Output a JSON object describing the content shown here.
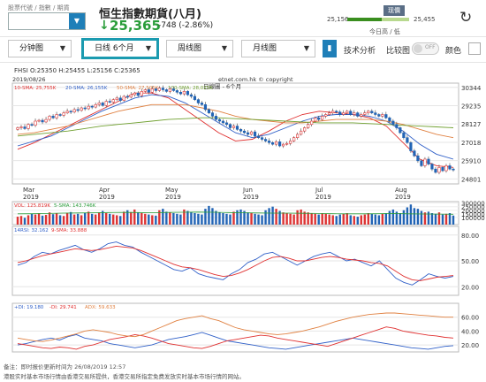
{
  "header": {
    "code_label": "股票代號 / 指數 / 期貨",
    "code_value": "",
    "stock_name": "恒生指數期貨(八月)",
    "price": "25,365",
    "change": "-748 (-2.86%)",
    "range_low": "25,156",
    "range_high": "25,455",
    "range_tag": "现價",
    "range_caption": "今日高 / 低",
    "range_fraction": 0.55
  },
  "toolbar": {
    "interval": "分钟图",
    "period": "日线 6个月",
    "weekly": "周线图",
    "monthly": "月线图",
    "tech": "技术分析",
    "compare": "比较图",
    "toggle_text": "OFF",
    "color": "颜色"
  },
  "quote": {
    "text": "FHSI    O:25350  H:25455  L:25156  C:25365"
  },
  "chart_data": [
    {
      "type": "candlestick",
      "date": "2019/08/26",
      "title": "日線圖 - 6个月",
      "source": "etnet.com.hk © copyright",
      "legend": [
        "10-SMA: 25,755K",
        "20-SMA: 26,155K",
        "50-SMA: 27,505K",
        "100-SMA: 28,025K"
      ],
      "y_ticks": [
        "30344",
        "29235",
        "28127",
        "27018",
        "25910",
        "24801"
      ],
      "ylim": [
        24500,
        30600
      ],
      "x_ticks": [
        [
          "Mar",
          "2019"
        ],
        [
          "Apr",
          "2019"
        ],
        [
          "May",
          "2019"
        ],
        [
          "Jun",
          "2019"
        ],
        [
          "Jul",
          "2019"
        ],
        [
          "Aug",
          "2019"
        ]
      ],
      "closes": [
        27900,
        27950,
        27850,
        28100,
        28050,
        28300,
        28350,
        28250,
        28400,
        28600,
        28500,
        28700,
        28650,
        28800,
        28900,
        28850,
        29000,
        28950,
        29100,
        29050,
        29200,
        29150,
        29300,
        29400,
        29250,
        29500,
        29450,
        29600,
        29700,
        29550,
        29800,
        29750,
        29900,
        30000,
        29850,
        30100,
        30200,
        30050,
        30250,
        30150,
        30300,
        30200,
        30100,
        30250,
        30150,
        30050,
        29950,
        30100,
        29900,
        29800,
        29600,
        29400,
        29300,
        29000,
        28800,
        28600,
        28400,
        28300,
        28200,
        28100,
        27900,
        28000,
        27800,
        27700,
        27600,
        27500,
        27650,
        27400,
        27300,
        27200,
        27100,
        27000,
        26900,
        27050,
        26800,
        26900,
        26950,
        27100,
        27300,
        27500,
        27700,
        27900,
        28100,
        28300,
        28500,
        28400,
        28600,
        28700,
        28800,
        28900,
        28850,
        28700,
        28800,
        28900,
        28700,
        28800,
        28600,
        28700,
        28800,
        28900,
        28800,
        28700,
        28600,
        28700,
        28500,
        28300,
        28100,
        27900,
        27600,
        27300,
        27000,
        26500,
        26200,
        25900,
        25600,
        26000,
        25700,
        25400,
        25200,
        25500,
        25300,
        25600,
        25400,
        25365
      ],
      "sma": [
        {
          "name": "10-SMA",
          "color": "#e03030",
          "values": [
            26.6,
            27,
            27.5,
            28,
            28.5,
            29,
            29.5,
            30,
            30,
            29.7,
            29,
            28.3,
            27.6,
            27.1,
            27.2,
            27.7,
            28.3,
            28.7,
            28.9,
            28.8,
            28.7,
            28.5,
            28,
            27,
            26,
            25.6,
            25.5
          ]
        },
        {
          "name": "20-SMA",
          "color": "#3060c8",
          "values": [
            26.8,
            27.1,
            27.4,
            27.9,
            28.4,
            28.9,
            29.3,
            29.7,
            29.9,
            29.8,
            29.4,
            28.8,
            28.2,
            27.6,
            27.3,
            27.5,
            27.9,
            28.3,
            28.6,
            28.7,
            28.7,
            28.6,
            28.3,
            27.7,
            26.9,
            26.3,
            26
          ]
        },
        {
          "name": "50-SMA",
          "color": "#e08040",
          "values": [
            27.5,
            27.6,
            27.8,
            28,
            28.3,
            28.6,
            28.9,
            29.1,
            29.3,
            29.3,
            29.3,
            29.1,
            28.9,
            28.6,
            28.4,
            28.3,
            28.2,
            28.2,
            28.3,
            28.4,
            28.4,
            28.4,
            28.3,
            28.1,
            27.8,
            27.5,
            27.3
          ]
        },
        {
          "name": "100-SMA",
          "color": "#70a030",
          "values": [
            27.4,
            27.5,
            27.6,
            27.7,
            27.85,
            28,
            28.1,
            28.2,
            28.3,
            28.4,
            28.45,
            28.5,
            28.5,
            28.45,
            28.4,
            28.35,
            28.3,
            28.25,
            28.2,
            28.2,
            28.2,
            28.15,
            28.1,
            28.05,
            28,
            27.95,
            27.9
          ]
        }
      ]
    },
    {
      "type": "bar",
      "legend": [
        "VOL: 125.819K",
        "5-SMA: 143.746K"
      ],
      "y_ticks": [
        "300000",
        "250000",
        "200000",
        "150000",
        "100000"
      ],
      "ylim": [
        0,
        320000
      ],
      "values": [
        110,
        120,
        95,
        130,
        150,
        140,
        160,
        125,
        135,
        170,
        145,
        155,
        130,
        120,
        165,
        175,
        140,
        150,
        130,
        160,
        180,
        150,
        140,
        170,
        190,
        160,
        150,
        140,
        130,
        120,
        180,
        200,
        175,
        210,
        170,
        160,
        150,
        140,
        130,
        125,
        200,
        220,
        180,
        170,
        160,
        150,
        140,
        210,
        190,
        175,
        160,
        150,
        140,
        220,
        260,
        230,
        190,
        170,
        160,
        150,
        140,
        180,
        200,
        210,
        190,
        170,
        160,
        150,
        140,
        130,
        200,
        230,
        250,
        220,
        190,
        170,
        160,
        150,
        140,
        200,
        210,
        180,
        170,
        160,
        150,
        140,
        160,
        150,
        140,
        130,
        120,
        140,
        150,
        160,
        130,
        120,
        110,
        130,
        140,
        160,
        150,
        140,
        130,
        150,
        160,
        190,
        210,
        180,
        160,
        200,
        240,
        280,
        230,
        220,
        190,
        170,
        180,
        160,
        150,
        170,
        140,
        150,
        160,
        126
      ],
      "ma": [
        150,
        152,
        155,
        160,
        162,
        165,
        168,
        170,
        168,
        165,
        170,
        172,
        175,
        172,
        168,
        165,
        162,
        160,
        160,
        158,
        155,
        152,
        150,
        150,
        152,
        155,
        150,
        148,
        146,
        144
      ]
    },
    {
      "type": "line",
      "legend": [
        "14RSI: 32.162",
        "9-SMA: 33.888"
      ],
      "y_ticks": [
        "80.00",
        "50.00",
        "20.00"
      ],
      "ylim": [
        10,
        90
      ],
      "rsi": [
        45,
        48,
        55,
        60,
        58,
        62,
        65,
        68,
        63,
        60,
        64,
        70,
        72,
        68,
        66,
        60,
        55,
        50,
        45,
        40,
        38,
        42,
        35,
        32,
        30,
        28,
        35,
        40,
        48,
        52,
        58,
        60,
        55,
        50,
        45,
        50,
        55,
        58,
        60,
        55,
        50,
        52,
        48,
        44,
        50,
        40,
        30,
        25,
        22,
        28,
        35,
        32,
        30,
        32
      ],
      "rsi_ma": [
        48,
        50,
        53,
        56,
        58,
        60,
        62,
        64,
        63,
        62,
        63,
        65,
        67,
        66,
        65,
        62,
        58,
        54,
        50,
        46,
        43,
        42,
        40,
        37,
        34,
        32,
        33,
        36,
        40,
        45,
        50,
        54,
        55,
        53,
        50,
        50,
        52,
        54,
        55,
        54,
        52,
        51,
        50,
        48,
        47,
        44,
        38,
        32,
        28,
        27,
        29,
        31,
        32,
        33
      ]
    },
    {
      "type": "line",
      "legend": [
        "+DI: 19.180",
        "-DI: 29.741",
        "ADX: 59.633"
      ],
      "y_ticks": [
        "60.00",
        "40.00",
        "20.00"
      ],
      "ylim": [
        10,
        80
      ],
      "pdi": [
        20,
        22,
        25,
        28,
        30,
        27,
        32,
        35,
        30,
        28,
        26,
        22,
        20,
        18,
        16,
        18,
        20,
        24,
        28,
        30,
        32,
        35,
        38,
        34,
        30,
        26,
        24,
        22,
        20,
        18,
        16,
        15,
        14,
        16,
        18,
        20,
        22,
        24,
        26,
        28,
        30,
        28,
        26,
        24,
        22,
        20,
        18,
        16,
        15,
        14,
        16,
        18,
        19
      ],
      "mdi": [
        22,
        20,
        18,
        16,
        15,
        17,
        16,
        14,
        18,
        20,
        24,
        28,
        30,
        32,
        35,
        33,
        30,
        26,
        22,
        20,
        18,
        16,
        15,
        18,
        22,
        26,
        28,
        30,
        32,
        34,
        33,
        30,
        28,
        26,
        24,
        22,
        20,
        18,
        22,
        26,
        30,
        34,
        38,
        42,
        46,
        44,
        40,
        38,
        36,
        34,
        33,
        31,
        30
      ],
      "adx": [
        30,
        28,
        26,
        25,
        27,
        30,
        33,
        36,
        40,
        42,
        40,
        38,
        35,
        33,
        32,
        35,
        40,
        45,
        50,
        55,
        58,
        60,
        62,
        58,
        55,
        50,
        45,
        42,
        40,
        38,
        36,
        35,
        36,
        38,
        40,
        43,
        46,
        50,
        54,
        57,
        60,
        62,
        64,
        65,
        66,
        66,
        65,
        64,
        63,
        62,
        61,
        60,
        60
      ]
    }
  ],
  "footnote": {
    "line1": "备注：即时报价更新时间为 26/08/2019 12:57",
    "line2": "港股实时基本市场行情由香港交易所提供，香港交易所指定免费发放实时基本市场行情的网站。"
  },
  "colors": {
    "up": "#2a9d3a",
    "accent": "#1f7fb8",
    "candle_up": "#d33",
    "candle_down": "#2264b5",
    "active_border": "#1b9bb0"
  }
}
